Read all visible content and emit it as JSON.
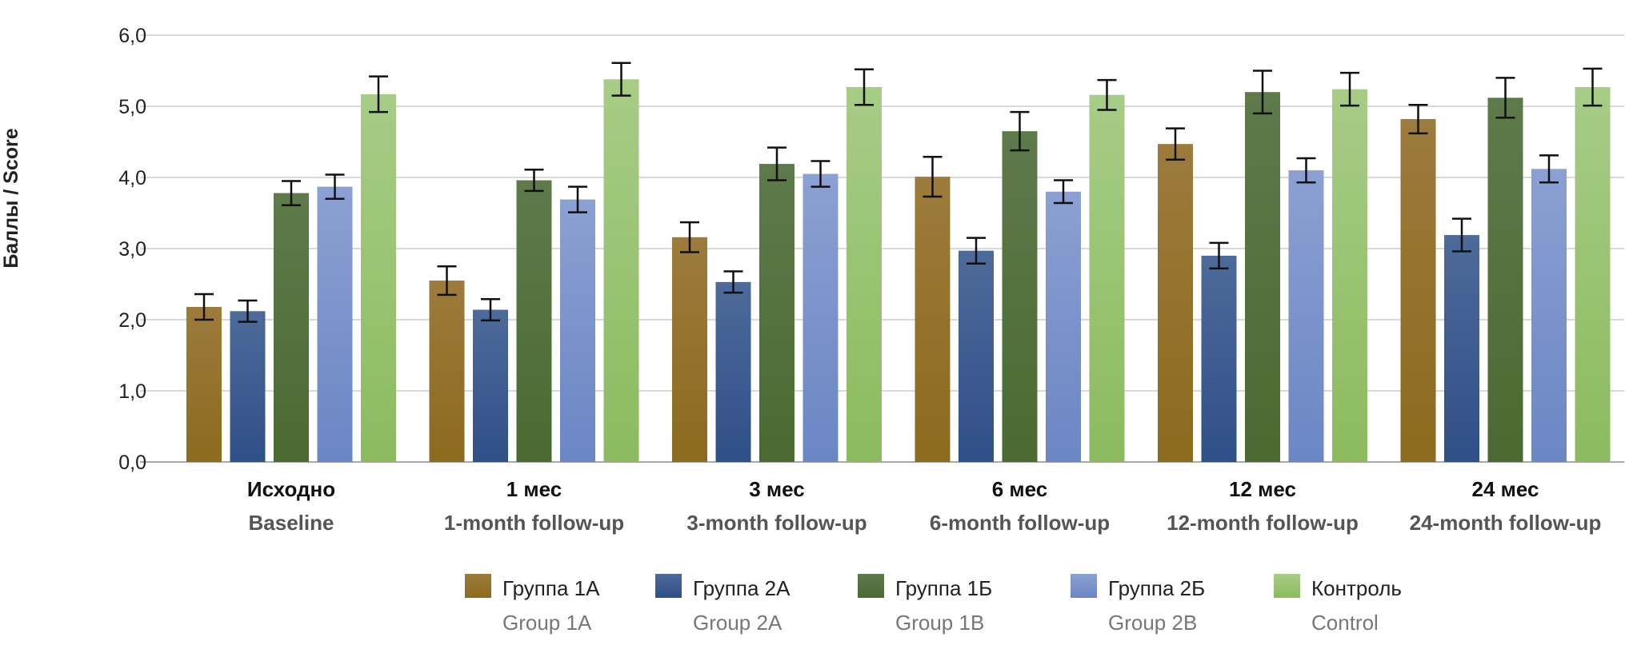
{
  "chart_data": {
    "type": "bar",
    "ylabel": "Баллы / Score",
    "ylim": [
      0,
      6
    ],
    "yticks": [
      "0,0",
      "1,0",
      "2,0",
      "3,0",
      "4,0",
      "5,0",
      "6,0"
    ],
    "grid": true,
    "legend_position": "bottom",
    "categories": [
      {
        "ru": "Исходно",
        "en": "Baseline"
      },
      {
        "ru": "1 мес",
        "en": "1-month follow-up"
      },
      {
        "ru": "3 мес",
        "en": "3-month follow-up"
      },
      {
        "ru": "6 мес",
        "en": "6-month follow-up"
      },
      {
        "ru": "12 мес",
        "en": "12-month follow-up"
      },
      {
        "ru": "24 мес",
        "en": "24-month follow-up"
      }
    ],
    "series": [
      {
        "name": "Группа 1А",
        "name_en": "Group 1A",
        "color_top": "#9c7b3c",
        "color_bottom": "#8c6a1e",
        "values": [
          2.18,
          2.55,
          3.16,
          4.01,
          4.47,
          4.82
        ],
        "errors": [
          0.18,
          0.2,
          0.21,
          0.28,
          0.22,
          0.2
        ]
      },
      {
        "name": "Группа 2А",
        "name_en": "Group 2A",
        "color_top": "#4d6a9a",
        "color_bottom": "#2f4f88",
        "values": [
          2.12,
          2.14,
          2.53,
          2.97,
          2.9,
          3.19
        ],
        "errors": [
          0.15,
          0.15,
          0.15,
          0.18,
          0.18,
          0.23
        ]
      },
      {
        "name": "Группа 1Б",
        "name_en": "Group 1B",
        "color_top": "#5e7a4a",
        "color_bottom": "#4a6a32",
        "values": [
          3.78,
          3.96,
          4.19,
          4.65,
          5.2,
          5.12
        ],
        "errors": [
          0.17,
          0.15,
          0.23,
          0.27,
          0.3,
          0.28
        ]
      },
      {
        "name": "Группа 2Б",
        "name_en": "Group 2B",
        "color_top": "#8ca0d2",
        "color_bottom": "#6a86c4",
        "values": [
          3.87,
          3.69,
          4.05,
          3.8,
          4.1,
          4.12
        ],
        "errors": [
          0.17,
          0.18,
          0.18,
          0.16,
          0.17,
          0.19
        ]
      },
      {
        "name": "Контроль",
        "name_en": "Control",
        "color_top": "#a7cc86",
        "color_bottom": "#8bbb5e",
        "values": [
          5.17,
          5.38,
          5.27,
          5.16,
          5.24,
          5.27
        ],
        "errors": [
          0.25,
          0.23,
          0.25,
          0.21,
          0.23,
          0.26
        ]
      }
    ]
  }
}
